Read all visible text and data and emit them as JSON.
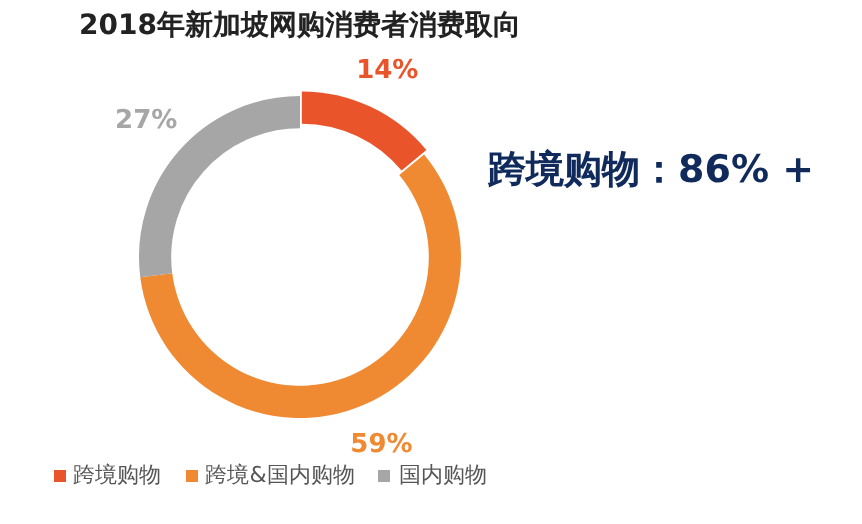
{
  "chart_data": {
    "type": "donut",
    "title": "2018年新加坡网购消费者消费取向",
    "categories": [
      "跨境购物",
      "跨境&国内购物",
      "国内购物"
    ],
    "values": [
      14,
      59,
      27
    ],
    "value_labels": [
      "14%",
      "59%",
      "27%"
    ],
    "colors": [
      "#e9542b",
      "#f08a32",
      "#a6a6a6"
    ],
    "legend": "bottom",
    "annotations": [
      "跨境购物：86% +"
    ]
  }
}
